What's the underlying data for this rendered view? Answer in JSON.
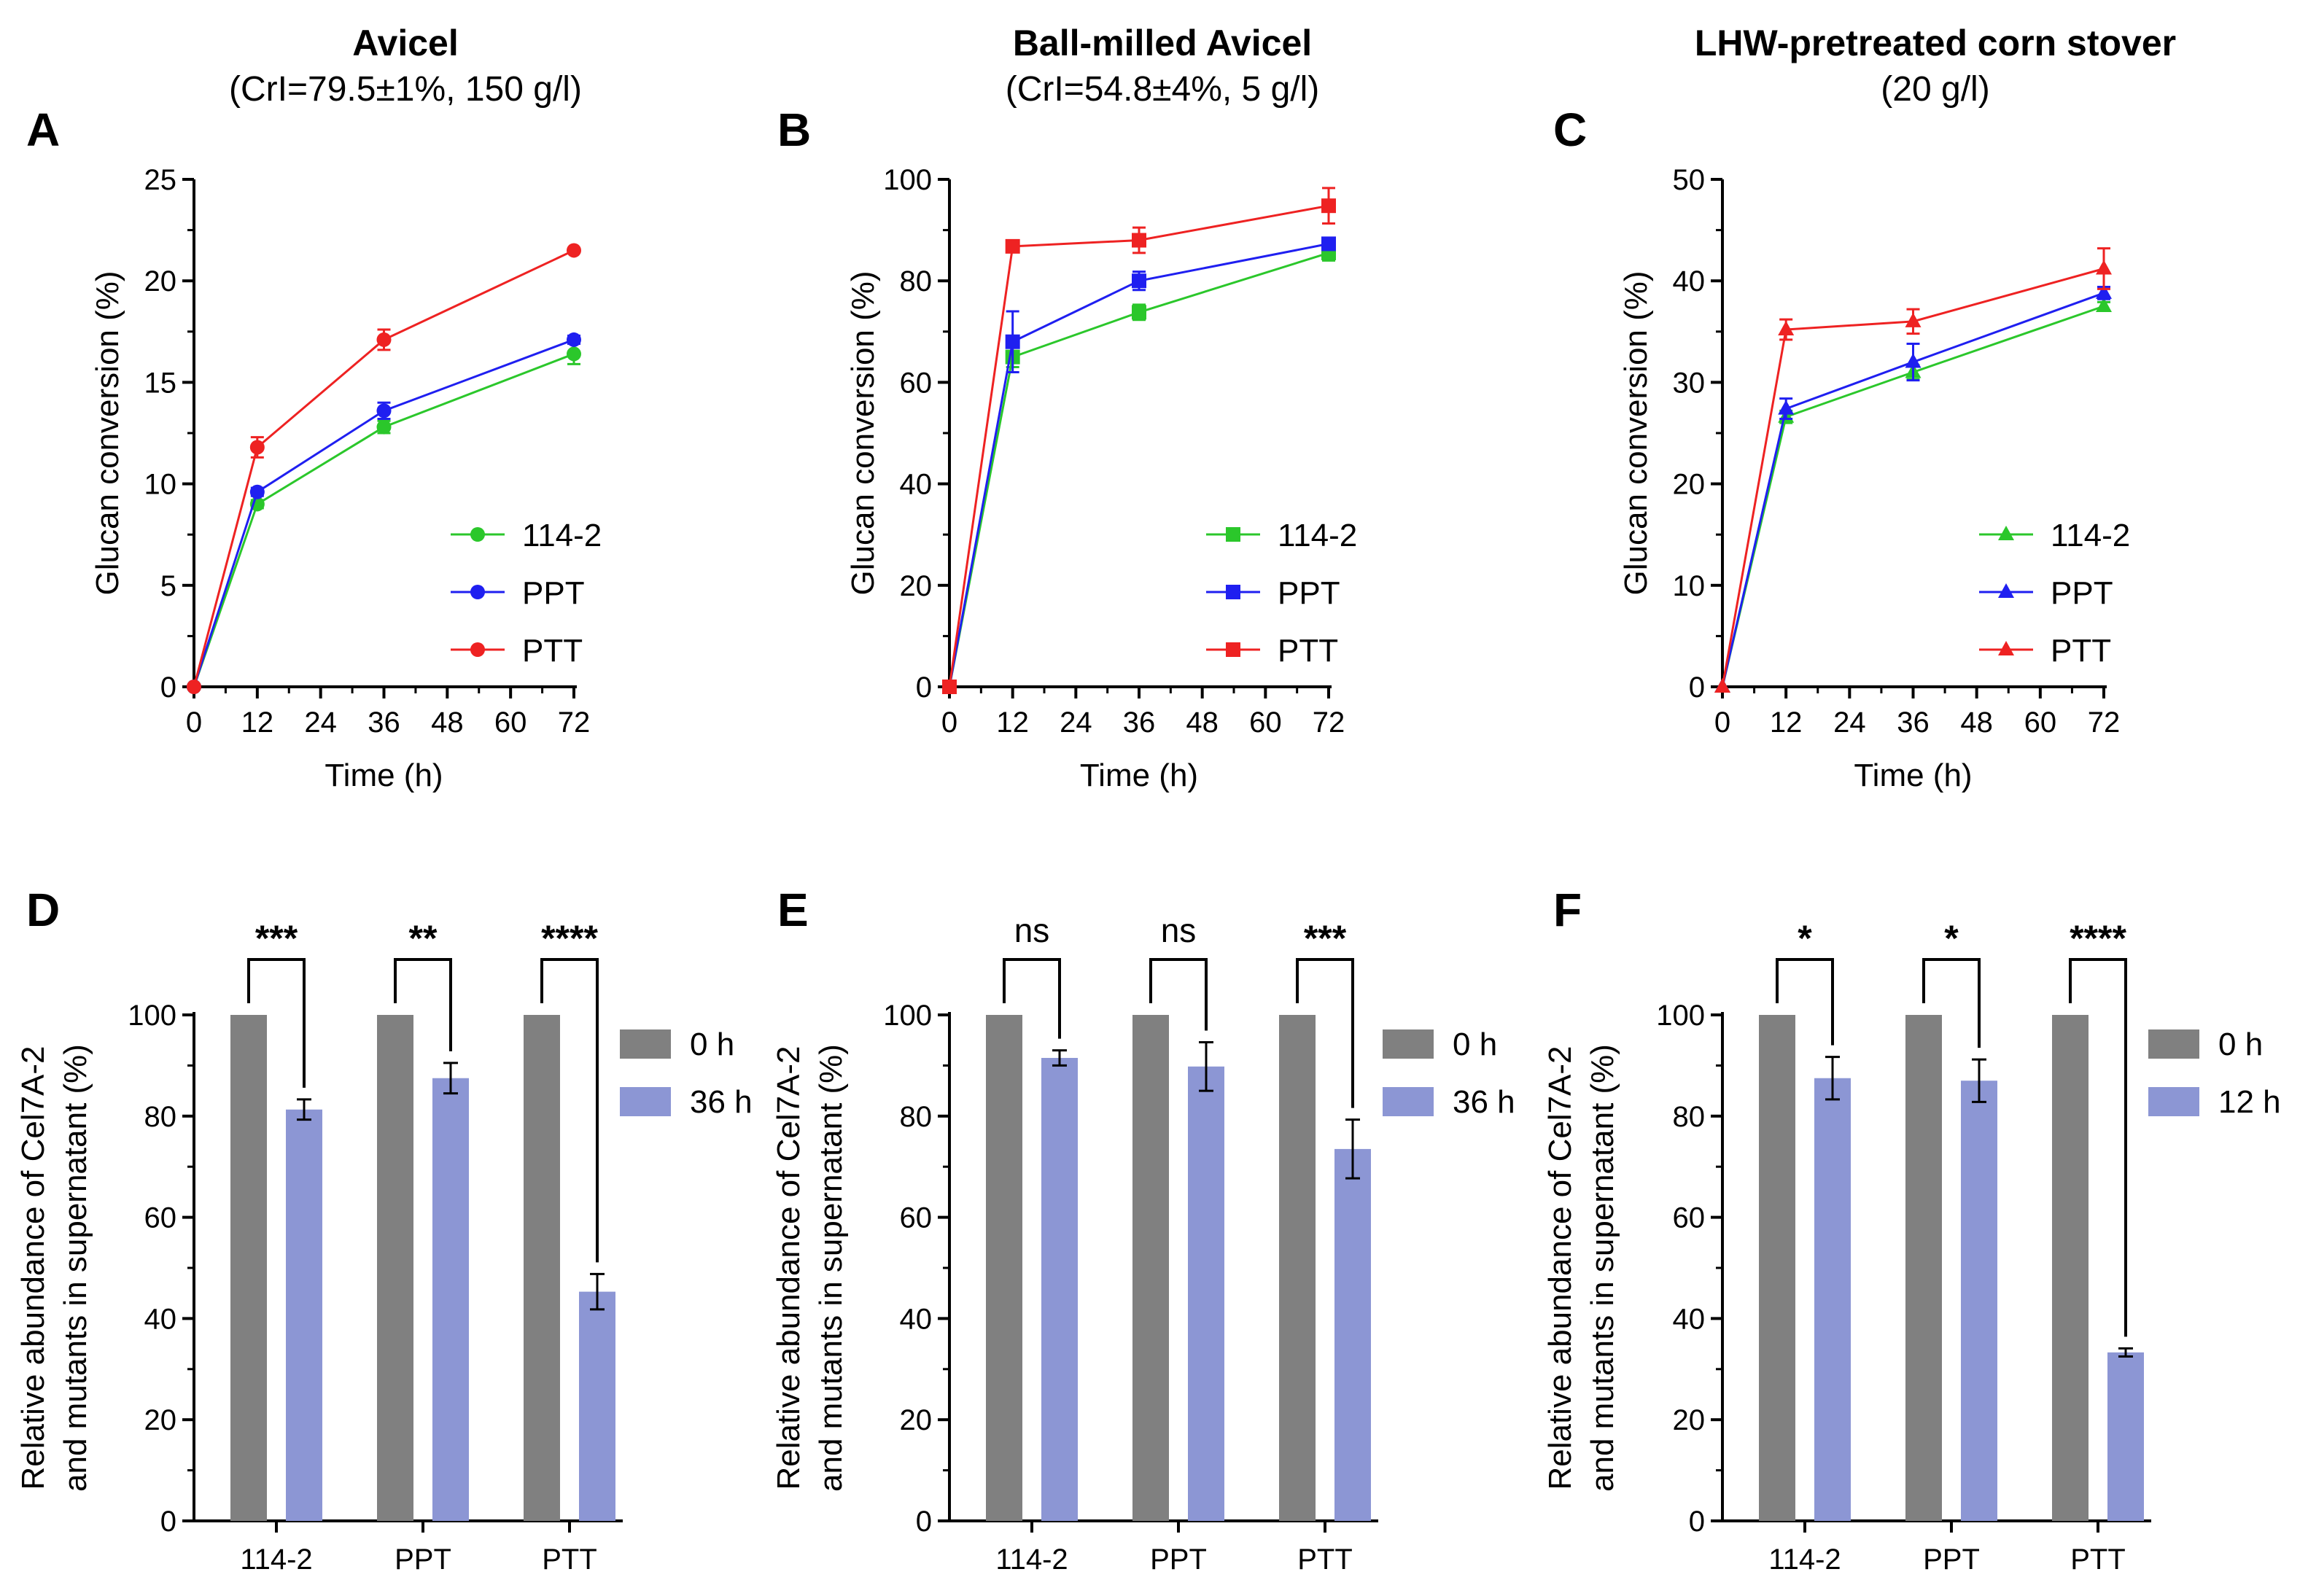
{
  "chart_data": [
    {
      "panel": "A",
      "type": "line",
      "title": "Avicel",
      "subtitle": "(CrI=79.5±1%, 150 g/l)",
      "xlabel": "Time (h)",
      "ylabel": "Glucan conversion (%)",
      "xlim": [
        0,
        72
      ],
      "ylim": [
        0,
        25
      ],
      "xticks": [
        "0",
        "12",
        "24",
        "36",
        "48",
        "60",
        "72"
      ],
      "yticks": [
        "0",
        "5",
        "10",
        "15",
        "20",
        "25"
      ],
      "marker": "circle",
      "legend_position": "center-right",
      "x": [
        0,
        12,
        36,
        72
      ],
      "series": [
        {
          "name": "114-2",
          "color": "#2bc72b",
          "values": [
            0,
            9.0,
            12.8,
            16.4
          ],
          "errors": [
            0,
            0.2,
            0.3,
            0.5
          ]
        },
        {
          "name": "PPT",
          "color": "#1f1ff0",
          "values": [
            0,
            9.6,
            13.6,
            17.1
          ],
          "errors": [
            0,
            0.2,
            0.4,
            0.2
          ]
        },
        {
          "name": "PTT",
          "color": "#ee2222",
          "values": [
            0,
            11.8,
            17.1,
            21.5
          ],
          "errors": [
            0,
            0.5,
            0.5,
            0.1
          ]
        }
      ]
    },
    {
      "panel": "B",
      "type": "line",
      "title": "Ball-milled Avicel",
      "subtitle": "(CrI=54.8±4%, 5 g/l)",
      "xlabel": "Time (h)",
      "ylabel": "Glucan conversion (%)",
      "xlim": [
        0,
        72
      ],
      "ylim": [
        0,
        100
      ],
      "xticks": [
        "0",
        "12",
        "24",
        "36",
        "48",
        "60",
        "72"
      ],
      "yticks": [
        "0",
        "20",
        "40",
        "60",
        "80",
        "100"
      ],
      "marker": "square",
      "legend_position": "center-right",
      "x": [
        0,
        12,
        36,
        72
      ],
      "series": [
        {
          "name": "114-2",
          "color": "#2bc72b",
          "values": [
            0,
            65.0,
            73.8,
            85.5
          ],
          "errors": [
            0,
            2.0,
            1.5,
            1.5
          ]
        },
        {
          "name": "PPT",
          "color": "#1f1ff0",
          "values": [
            0,
            68.0,
            80.0,
            87.3
          ],
          "errors": [
            0,
            6.0,
            1.8,
            1.0
          ]
        },
        {
          "name": "PTT",
          "color": "#ee2222",
          "values": [
            0,
            86.8,
            88.0,
            94.8
          ],
          "errors": [
            0,
            0.5,
            2.5,
            3.5
          ]
        }
      ]
    },
    {
      "panel": "C",
      "type": "line",
      "title": "LHW-pretreated corn stover",
      "subtitle": "(20 g/l)",
      "xlabel": "Time (h)",
      "ylabel": "Glucan conversion (%)",
      "xlim": [
        0,
        72
      ],
      "ylim": [
        0,
        50
      ],
      "xticks": [
        "0",
        "12",
        "24",
        "36",
        "48",
        "60",
        "72"
      ],
      "yticks": [
        "0",
        "10",
        "20",
        "30",
        "40",
        "50"
      ],
      "marker": "triangle",
      "legend_position": "center-right",
      "x": [
        0,
        12,
        36,
        72
      ],
      "series": [
        {
          "name": "114-2",
          "color": "#2bc72b",
          "values": [
            0,
            26.6,
            31.0,
            37.5
          ],
          "errors": [
            0,
            0.6,
            0.7,
            0.4
          ]
        },
        {
          "name": "PPT",
          "color": "#1f1ff0",
          "values": [
            0,
            27.4,
            32.0,
            38.8
          ],
          "errors": [
            0,
            1.0,
            1.8,
            0.6
          ]
        },
        {
          "name": "PTT",
          "color": "#ee2222",
          "values": [
            0,
            35.2,
            36.0,
            41.2
          ],
          "errors": [
            0,
            1.0,
            1.2,
            2.0
          ]
        }
      ]
    },
    {
      "panel": "D",
      "type": "bar",
      "ylabel_line1": "Relative abundance of Cel7A-2",
      "ylabel_line2": "and mutants in supernatant (%)",
      "ylim": [
        0,
        100
      ],
      "yticks": [
        "0",
        "20",
        "40",
        "60",
        "80",
        "100"
      ],
      "categories": [
        "114-2",
        "PPT",
        "PTT"
      ],
      "legend_position": "top-right",
      "series": [
        {
          "name": "0 h",
          "color": "#808080",
          "values": [
            100,
            100,
            100
          ],
          "errors": [
            0,
            0,
            0
          ]
        },
        {
          "name": "36 h",
          "color": "#8c96d4",
          "values": [
            81.3,
            87.5,
            45.3
          ],
          "errors": [
            2.0,
            3.0,
            3.5
          ]
        }
      ],
      "significance": [
        "***",
        "**",
        "****"
      ]
    },
    {
      "panel": "E",
      "type": "bar",
      "ylabel_line1": "Relative abundance of Cel7A-2",
      "ylabel_line2": "and mutants in supernatant (%)",
      "ylim": [
        0,
        100
      ],
      "yticks": [
        "0",
        "20",
        "40",
        "60",
        "80",
        "100"
      ],
      "categories": [
        "114-2",
        "PPT",
        "PTT"
      ],
      "legend_position": "top-right",
      "series": [
        {
          "name": "0 h",
          "color": "#808080",
          "values": [
            100,
            100,
            100
          ],
          "errors": [
            0,
            0,
            0
          ]
        },
        {
          "name": "36 h",
          "color": "#8c96d4",
          "values": [
            91.5,
            89.8,
            73.5
          ],
          "errors": [
            1.5,
            4.8,
            5.8
          ]
        }
      ],
      "significance": [
        "ns",
        "ns",
        "***"
      ]
    },
    {
      "panel": "F",
      "type": "bar",
      "ylabel_line1": "Relative abundance of Cel7A-2",
      "ylabel_line2": "and mutants in supernatant (%)",
      "ylim": [
        0,
        100
      ],
      "yticks": [
        "0",
        "20",
        "40",
        "60",
        "80",
        "100"
      ],
      "categories": [
        "114-2",
        "PPT",
        "PTT"
      ],
      "legend_position": "top-right",
      "series": [
        {
          "name": "0 h",
          "color": "#808080",
          "values": [
            100,
            100,
            100
          ],
          "errors": [
            0,
            0,
            0
          ]
        },
        {
          "name": "12 h",
          "color": "#8c96d4",
          "values": [
            87.5,
            87.0,
            33.3
          ],
          "errors": [
            4.2,
            4.2,
            0.8
          ]
        }
      ],
      "significance": [
        "*",
        "*",
        "****"
      ]
    }
  ]
}
